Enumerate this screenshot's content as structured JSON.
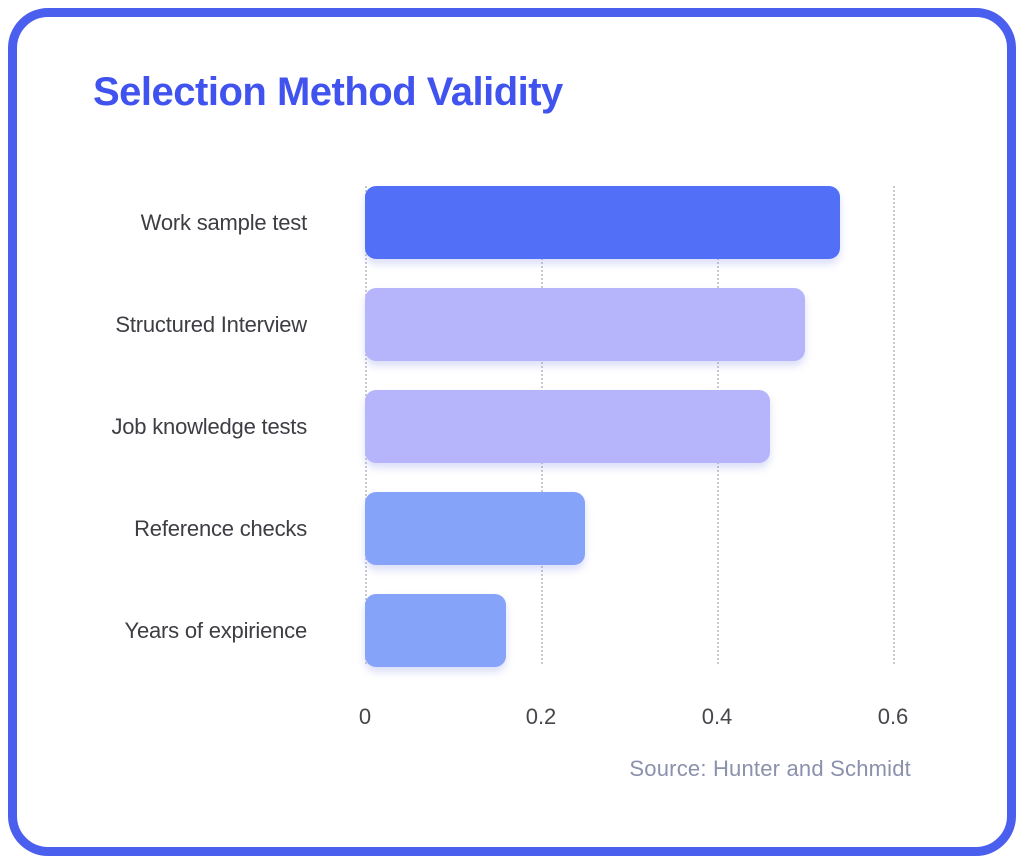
{
  "card": {
    "title": "Selection Method Validity",
    "source": "Source: Hunter and Schmidt",
    "accent_color": "#4153ee",
    "border_color": "#4b5fee"
  },
  "chart_data": {
    "type": "bar",
    "orientation": "horizontal",
    "title": "Selection Method Validity",
    "categories": [
      "Work sample test",
      "Structured Interview",
      "Job knowledge tests",
      "Reference checks",
      "Years of expirience"
    ],
    "values": [
      0.54,
      0.5,
      0.46,
      0.25,
      0.16
    ],
    "bar_colors": [
      "#526ff7",
      "#b6b4fb",
      "#b6b4fb",
      "#86a3fa",
      "#86a3fa"
    ],
    "xticks": [
      0,
      0.2,
      0.4,
      0.6
    ],
    "xtick_labels": [
      "0",
      "0.2",
      "0.4",
      "0.6"
    ],
    "xlim": [
      0,
      0.63
    ],
    "grid": "dotted-vertical",
    "legend": "none",
    "annotation": "Source: Hunter and Schmidt",
    "label_color": "#3d3d44",
    "tick_color": "#46464c",
    "gridline_color": "#c9c9d2",
    "source_color": "#8b90ac"
  }
}
